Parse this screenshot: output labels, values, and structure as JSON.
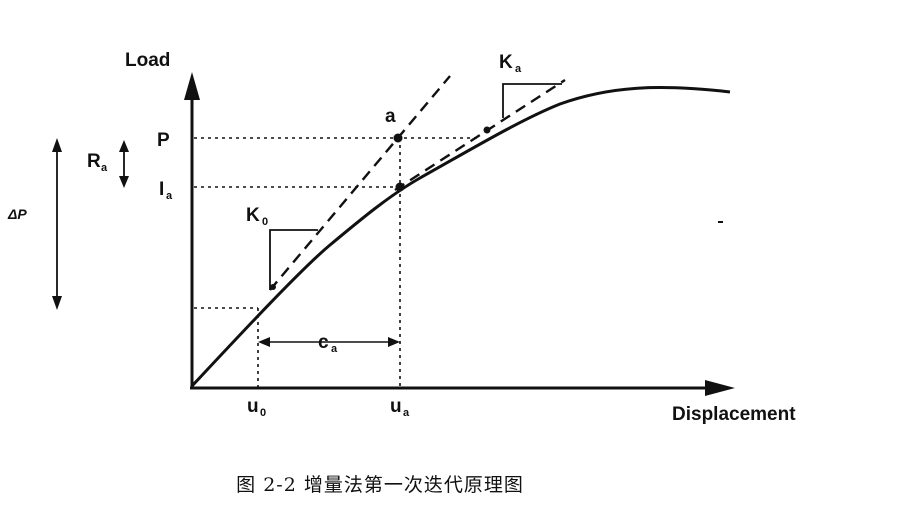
{
  "diagram": {
    "y_axis_label": "Load",
    "x_axis_label": "Displacement",
    "label_P": "P",
    "label_I": "I",
    "label_I_sub": "a",
    "label_R": "R",
    "label_R_sub": "a",
    "label_deltaP": "ΔP",
    "label_K0": "K",
    "label_K0_sub": "0",
    "label_Ka": "K",
    "label_Ka_sub": "a",
    "label_point_a": "a",
    "label_c": "c",
    "label_c_sub": "a",
    "label_u0": "u",
    "label_u0_sub": "0",
    "label_ua": "u",
    "label_ua_sub": "a"
  },
  "caption": "图 2-2   增量法第一次迭代原理图"
}
